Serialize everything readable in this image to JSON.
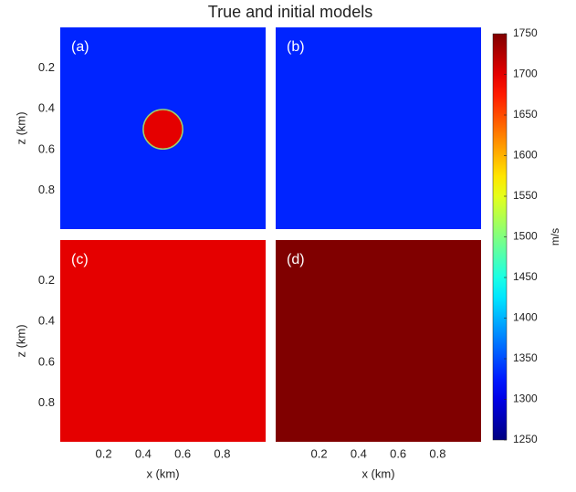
{
  "chart_data": {
    "type": "heatmap-grid",
    "title": "True and initial models",
    "xlabel": "x (km)",
    "ylabel": "z (km)",
    "xlim": [
      -0.02,
      1.02
    ],
    "ylim": [
      0,
      0.99
    ],
    "xticks": [
      0.2,
      0.4,
      0.6,
      0.8
    ],
    "yticks": [
      0.2,
      0.4,
      0.6,
      0.8
    ],
    "panels": [
      {
        "label": "(a)",
        "background": 1330,
        "anomaly": {
          "x": 0.5,
          "z": 0.5,
          "radius": 0.1,
          "value": 1700
        }
      },
      {
        "label": "(b)",
        "background": 1330
      },
      {
        "label": "(c)",
        "background": 1700
      },
      {
        "label": "(d)",
        "background": 1750
      }
    ],
    "colorbar": {
      "label": "m/s",
      "lim": [
        1250,
        1750
      ],
      "colormap": "jet",
      "ticks": [
        1250,
        1300,
        1350,
        1400,
        1450,
        1500,
        1550,
        1600,
        1650,
        1700,
        1750
      ]
    }
  }
}
